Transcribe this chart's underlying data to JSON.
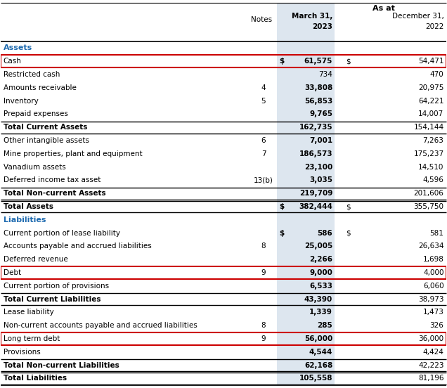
{
  "title_as_at": "As at",
  "col_notes": "Notes",
  "header_bg": "#e8eef4",
  "march_col_bg": "#dde6ef",
  "section_color": "#1f6bb0",
  "rows": [
    {
      "label": "Assets",
      "notes": "",
      "march": "",
      "dec": "",
      "type": "section_header",
      "red_box": false,
      "dollar_march": false,
      "dollar_dec": false,
      "bold_march": false
    },
    {
      "label": "Cash",
      "notes": "",
      "march": "61,575",
      "dec": "54,471",
      "type": "data",
      "dollar_march": true,
      "dollar_dec": true,
      "bold_march": true,
      "red_box": true
    },
    {
      "label": "Restricted cash",
      "notes": "",
      "march": "734",
      "dec": "470",
      "type": "data",
      "dollar_march": false,
      "dollar_dec": false,
      "bold_march": false,
      "red_box": false
    },
    {
      "label": "Amounts receivable",
      "notes": "4",
      "march": "33,808",
      "dec": "20,975",
      "type": "data",
      "dollar_march": false,
      "dollar_dec": false,
      "bold_march": true,
      "red_box": false
    },
    {
      "label": "Inventory",
      "notes": "5",
      "march": "56,853",
      "dec": "64,221",
      "type": "data",
      "dollar_march": false,
      "dollar_dec": false,
      "bold_march": true,
      "red_box": false
    },
    {
      "label": "Prepaid expenses",
      "notes": "",
      "march": "9,765",
      "dec": "14,007",
      "type": "data",
      "dollar_march": false,
      "dollar_dec": false,
      "bold_march": true,
      "red_box": false
    },
    {
      "label": "Total Current Assets",
      "notes": "",
      "march": "162,735",
      "dec": "154,144",
      "type": "subtotal",
      "dollar_march": false,
      "dollar_dec": false,
      "bold_march": false,
      "red_box": false
    },
    {
      "label": "Other intangible assets",
      "notes": "6",
      "march": "7,001",
      "dec": "7,263",
      "type": "data",
      "dollar_march": false,
      "dollar_dec": false,
      "bold_march": true,
      "red_box": false
    },
    {
      "label": "Mine properties, plant and equipment",
      "notes": "7",
      "march": "186,573",
      "dec": "175,237",
      "type": "data",
      "dollar_march": false,
      "dollar_dec": false,
      "bold_march": true,
      "red_box": false
    },
    {
      "label": "Vanadium assets",
      "notes": "",
      "march": "23,100",
      "dec": "14,510",
      "type": "data",
      "dollar_march": false,
      "dollar_dec": false,
      "bold_march": true,
      "red_box": false
    },
    {
      "label": "Deferred income tax asset",
      "notes": "13(b)",
      "march": "3,035",
      "dec": "4,596",
      "type": "data",
      "dollar_march": false,
      "dollar_dec": false,
      "bold_march": true,
      "red_box": false
    },
    {
      "label": "Total Non-current Assets",
      "notes": "",
      "march": "219,709",
      "dec": "201,606",
      "type": "subtotal",
      "dollar_march": false,
      "dollar_dec": false,
      "bold_march": false,
      "red_box": false
    },
    {
      "label": "Total Assets",
      "notes": "",
      "march": "382,444",
      "dec": "355,750",
      "type": "total",
      "dollar_march": true,
      "dollar_dec": true,
      "bold_march": false,
      "red_box": false
    },
    {
      "label": "Liabilities",
      "notes": "",
      "march": "",
      "dec": "",
      "type": "section_header",
      "dollar_march": false,
      "dollar_dec": false,
      "bold_march": false,
      "red_box": false
    },
    {
      "label": "Current portion of lease liability",
      "notes": "",
      "march": "586",
      "dec": "581",
      "type": "data",
      "dollar_march": true,
      "dollar_dec": true,
      "bold_march": true,
      "red_box": false
    },
    {
      "label": "Accounts payable and accrued liabilities",
      "notes": "8",
      "march": "25,005",
      "dec": "26,634",
      "type": "data",
      "dollar_march": false,
      "dollar_dec": false,
      "bold_march": true,
      "red_box": false
    },
    {
      "label": "Deferred revenue",
      "notes": "",
      "march": "2,266",
      "dec": "1,698",
      "type": "data",
      "dollar_march": false,
      "dollar_dec": false,
      "bold_march": true,
      "red_box": false
    },
    {
      "label": "Debt",
      "notes": "9",
      "march": "9,000",
      "dec": "4,000",
      "type": "data",
      "dollar_march": false,
      "dollar_dec": false,
      "bold_march": true,
      "red_box": true
    },
    {
      "label": "Current portion of provisions",
      "notes": "",
      "march": "6,533",
      "dec": "6,060",
      "type": "data",
      "dollar_march": false,
      "dollar_dec": false,
      "bold_march": true,
      "red_box": false
    },
    {
      "label": "Total Current Liabilities",
      "notes": "",
      "march": "43,390",
      "dec": "38,973",
      "type": "subtotal",
      "dollar_march": false,
      "dollar_dec": false,
      "bold_march": false,
      "red_box": false
    },
    {
      "label": "Lease liability",
      "notes": "",
      "march": "1,339",
      "dec": "1,473",
      "type": "data",
      "dollar_march": false,
      "dollar_dec": false,
      "bold_march": true,
      "red_box": false
    },
    {
      "label": "Non-current accounts payable and accrued liabilities",
      "notes": "8",
      "march": "285",
      "dec": "326",
      "type": "data",
      "dollar_march": false,
      "dollar_dec": false,
      "bold_march": true,
      "red_box": false
    },
    {
      "label": "Long term debt",
      "notes": "9",
      "march": "56,000",
      "dec": "36,000",
      "type": "data",
      "dollar_march": false,
      "dollar_dec": false,
      "bold_march": true,
      "red_box": true
    },
    {
      "label": "Provisions",
      "notes": "",
      "march": "4,544",
      "dec": "4,424",
      "type": "data",
      "dollar_march": false,
      "dollar_dec": false,
      "bold_march": true,
      "red_box": false
    },
    {
      "label": "Total Non-current Liabilities",
      "notes": "",
      "march": "62,168",
      "dec": "42,223",
      "type": "subtotal",
      "dollar_march": false,
      "dollar_dec": false,
      "bold_march": false,
      "red_box": false
    },
    {
      "label": "Total Liabilities",
      "notes": "",
      "march": "105,558",
      "dec": "81,196",
      "type": "total",
      "dollar_march": false,
      "dollar_dec": false,
      "bold_march": false,
      "red_box": false
    }
  ],
  "fig_bg": "#ffffff",
  "text_color": "#000000",
  "border_color": "#000000",
  "red_box_color": "#cc0000",
  "line_color": "#000000"
}
